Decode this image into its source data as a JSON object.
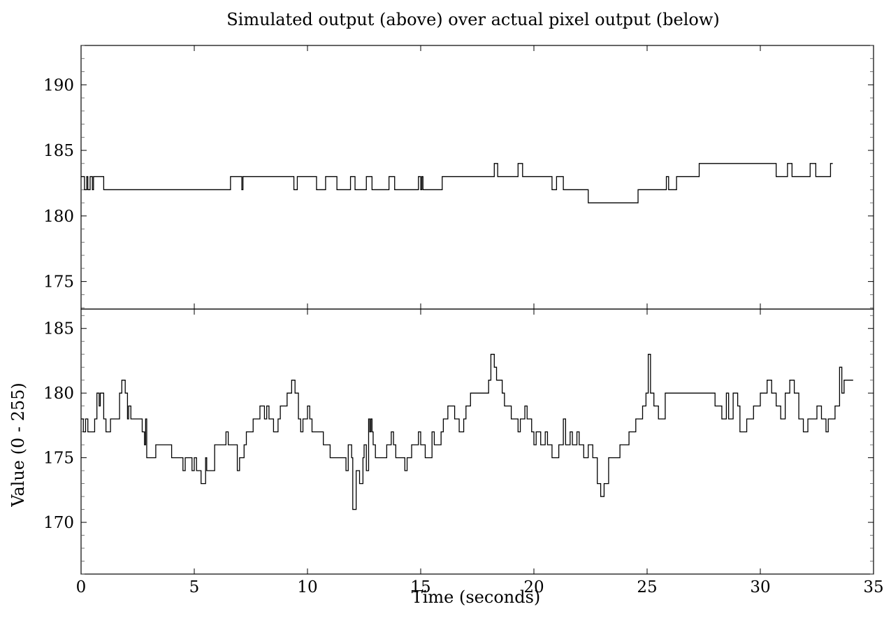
{
  "chart_data": {
    "type": "line",
    "title": "Simulated output (above) over actual pixel output (below)",
    "xlabel": "Time (seconds)",
    "ylabel": "Value (0 - 255)",
    "xlim": [
      0,
      35
    ],
    "x_ticks": [
      0,
      5,
      10,
      15,
      20,
      25,
      30,
      35
    ],
    "panels": [
      {
        "ylim": [
          172.9,
          193
        ],
        "y_ticks": [
          175,
          180,
          185,
          190
        ],
        "series": [
          {
            "step": true,
            "points": [
              [
                0,
                183
              ],
              [
                0.15,
                182
              ],
              [
                0.25,
                183
              ],
              [
                0.3,
                182
              ],
              [
                0.4,
                183
              ],
              [
                0.5,
                182
              ],
              [
                0.55,
                183
              ],
              [
                1.0,
                182
              ],
              [
                6.6,
                183
              ],
              [
                7.1,
                182
              ],
              [
                7.15,
                183
              ],
              [
                9.4,
                182
              ],
              [
                9.55,
                183
              ],
              [
                10.4,
                182
              ],
              [
                10.8,
                183
              ],
              [
                11.3,
                182
              ],
              [
                11.9,
                183
              ],
              [
                12.1,
                182
              ],
              [
                12.6,
                183
              ],
              [
                12.85,
                182
              ],
              [
                13.6,
                183
              ],
              [
                13.85,
                182
              ],
              [
                14.9,
                183
              ],
              [
                15.0,
                182
              ],
              [
                15.05,
                183
              ],
              [
                15.1,
                182
              ],
              [
                15.95,
                183
              ],
              [
                18.25,
                184
              ],
              [
                18.4,
                183
              ],
              [
                19.3,
                184
              ],
              [
                19.5,
                183
              ],
              [
                20.8,
                182
              ],
              [
                21.0,
                183
              ],
              [
                21.3,
                182
              ],
              [
                22.4,
                181
              ],
              [
                24.6,
                182
              ],
              [
                25.85,
                183
              ],
              [
                25.95,
                182
              ],
              [
                26.3,
                183
              ],
              [
                27.3,
                184
              ],
              [
                30.7,
                183
              ],
              [
                31.2,
                184
              ],
              [
                31.4,
                183
              ],
              [
                32.2,
                184
              ],
              [
                32.45,
                183
              ],
              [
                33.1,
                184
              ],
              [
                33.2,
                184
              ]
            ]
          }
        ]
      },
      {
        "ylim": [
          166,
          186.5
        ],
        "y_ticks": [
          170,
          175,
          180,
          185
        ],
        "series": [
          {
            "step": true,
            "points": [
              [
                0,
                178
              ],
              [
                0.1,
                177
              ],
              [
                0.2,
                178
              ],
              [
                0.3,
                177
              ],
              [
                0.6,
                178
              ],
              [
                0.7,
                180
              ],
              [
                0.8,
                179
              ],
              [
                0.85,
                180
              ],
              [
                1.0,
                178
              ],
              [
                1.1,
                177
              ],
              [
                1.3,
                178
              ],
              [
                1.7,
                180
              ],
              [
                1.8,
                181
              ],
              [
                1.95,
                180
              ],
              [
                2.05,
                178
              ],
              [
                2.1,
                179
              ],
              [
                2.2,
                178
              ],
              [
                2.7,
                177
              ],
              [
                2.8,
                176
              ],
              [
                2.85,
                178
              ],
              [
                2.9,
                175
              ],
              [
                3.3,
                176
              ],
              [
                4.0,
                175
              ],
              [
                4.5,
                174
              ],
              [
                4.6,
                175
              ],
              [
                4.9,
                174
              ],
              [
                5.0,
                175
              ],
              [
                5.1,
                174
              ],
              [
                5.3,
                173
              ],
              [
                5.5,
                175
              ],
              [
                5.55,
                174
              ],
              [
                5.9,
                176
              ],
              [
                6.4,
                177
              ],
              [
                6.5,
                176
              ],
              [
                6.9,
                174
              ],
              [
                7.0,
                175
              ],
              [
                7.2,
                176
              ],
              [
                7.3,
                177
              ],
              [
                7.6,
                178
              ],
              [
                7.9,
                179
              ],
              [
                8.1,
                178
              ],
              [
                8.2,
                179
              ],
              [
                8.3,
                178
              ],
              [
                8.5,
                177
              ],
              [
                8.7,
                178
              ],
              [
                8.8,
                179
              ],
              [
                9.1,
                180
              ],
              [
                9.3,
                181
              ],
              [
                9.45,
                180
              ],
              [
                9.6,
                178
              ],
              [
                9.7,
                177
              ],
              [
                9.8,
                178
              ],
              [
                10.0,
                179
              ],
              [
                10.1,
                178
              ],
              [
                10.2,
                177
              ],
              [
                10.7,
                176
              ],
              [
                11.0,
                175
              ],
              [
                11.7,
                174
              ],
              [
                11.8,
                176
              ],
              [
                11.95,
                175
              ],
              [
                12.0,
                171
              ],
              [
                12.15,
                174
              ],
              [
                12.3,
                173
              ],
              [
                12.45,
                175
              ],
              [
                12.5,
                176
              ],
              [
                12.6,
                174
              ],
              [
                12.7,
                178
              ],
              [
                12.75,
                177
              ],
              [
                12.8,
                178
              ],
              [
                12.85,
                177
              ],
              [
                12.9,
                176
              ],
              [
                13.0,
                175
              ],
              [
                13.5,
                176
              ],
              [
                13.7,
                177
              ],
              [
                13.8,
                176
              ],
              [
                13.9,
                175
              ],
              [
                14.3,
                174
              ],
              [
                14.4,
                175
              ],
              [
                14.6,
                176
              ],
              [
                14.9,
                177
              ],
              [
                15.0,
                176
              ],
              [
                15.2,
                175
              ],
              [
                15.5,
                177
              ],
              [
                15.6,
                176
              ],
              [
                15.9,
                177
              ],
              [
                16.0,
                178
              ],
              [
                16.2,
                179
              ],
              [
                16.5,
                178
              ],
              [
                16.7,
                177
              ],
              [
                16.9,
                178
              ],
              [
                17.0,
                179
              ],
              [
                17.2,
                180
              ],
              [
                18.0,
                181
              ],
              [
                18.1,
                183
              ],
              [
                18.25,
                182
              ],
              [
                18.35,
                181
              ],
              [
                18.6,
                180
              ],
              [
                18.7,
                179
              ],
              [
                19.0,
                178
              ],
              [
                19.3,
                177
              ],
              [
                19.4,
                178
              ],
              [
                19.6,
                179
              ],
              [
                19.7,
                178
              ],
              [
                19.9,
                177
              ],
              [
                20.0,
                176
              ],
              [
                20.1,
                177
              ],
              [
                20.3,
                176
              ],
              [
                20.5,
                177
              ],
              [
                20.6,
                176
              ],
              [
                20.8,
                175
              ],
              [
                21.1,
                176
              ],
              [
                21.3,
                178
              ],
              [
                21.4,
                176
              ],
              [
                21.6,
                177
              ],
              [
                21.7,
                176
              ],
              [
                21.9,
                177
              ],
              [
                22.0,
                176
              ],
              [
                22.2,
                175
              ],
              [
                22.4,
                176
              ],
              [
                22.6,
                175
              ],
              [
                22.8,
                173
              ],
              [
                22.95,
                172
              ],
              [
                23.1,
                173
              ],
              [
                23.3,
                175
              ],
              [
                23.8,
                176
              ],
              [
                24.2,
                177
              ],
              [
                24.5,
                178
              ],
              [
                24.8,
                179
              ],
              [
                24.95,
                180
              ],
              [
                25.05,
                183
              ],
              [
                25.15,
                180
              ],
              [
                25.3,
                179
              ],
              [
                25.5,
                178
              ],
              [
                25.8,
                180
              ],
              [
                26.0,
                180
              ],
              [
                27.5,
                180
              ],
              [
                28.0,
                179
              ],
              [
                28.3,
                178
              ],
              [
                28.5,
                180
              ],
              [
                28.6,
                178
              ],
              [
                28.8,
                180
              ],
              [
                29.0,
                179
              ],
              [
                29.1,
                177
              ],
              [
                29.4,
                178
              ],
              [
                29.7,
                179
              ],
              [
                30.0,
                180
              ],
              [
                30.3,
                181
              ],
              [
                30.5,
                180
              ],
              [
                30.7,
                179
              ],
              [
                30.9,
                178
              ],
              [
                31.1,
                180
              ],
              [
                31.3,
                181
              ],
              [
                31.5,
                180
              ],
              [
                31.7,
                178
              ],
              [
                31.9,
                177
              ],
              [
                32.1,
                178
              ],
              [
                32.5,
                179
              ],
              [
                32.7,
                178
              ],
              [
                32.9,
                177
              ],
              [
                33.0,
                178
              ],
              [
                33.3,
                179
              ],
              [
                33.5,
                182
              ],
              [
                33.6,
                180
              ],
              [
                33.7,
                181
              ],
              [
                34.1,
                181
              ]
            ]
          }
        ]
      }
    ]
  }
}
